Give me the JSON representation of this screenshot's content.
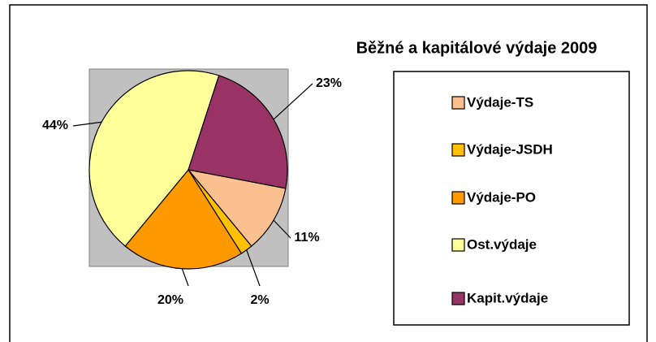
{
  "chart_data": {
    "type": "pie",
    "title": "Běžné a kapitálové výdaje 2009",
    "categories": [
      "Výdaje-TS",
      "Výdaje-JSDH",
      "Výdaje-PO",
      "Ost.výdaje",
      "Kapit.výdaje"
    ],
    "values": [
      11,
      2,
      20,
      44,
      23
    ],
    "value_labels": [
      "11%",
      "2%",
      "20%",
      "44%",
      "23%"
    ],
    "colors": [
      "#fac090",
      "#ffc000",
      "#ff9900",
      "#ffff99",
      "#993366"
    ],
    "legend": "right"
  }
}
